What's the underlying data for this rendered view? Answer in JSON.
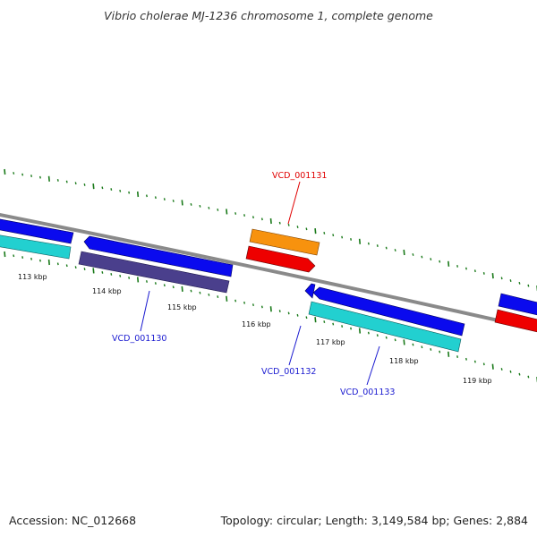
{
  "title": "Vibrio cholerae MJ-1236 chromosome 1, complete genome",
  "footer": {
    "accession": "Accession: NC_012668",
    "topology": "Topology: circular; Length: 3,149,584 bp; Genes: 2,884"
  },
  "tick_labels": [
    "113 kbp",
    "114 kbp",
    "115 kbp",
    "116 kbp",
    "117 kbp",
    "118 kbp",
    "119 kbp"
  ],
  "gene_labels": [
    {
      "text": "VCD_001131",
      "color": "#e00000"
    },
    {
      "text": "VCD_001130",
      "color": "#1a1ad0"
    },
    {
      "text": "VCD_001132",
      "color": "#1a1ad0"
    },
    {
      "text": "VCD_001133",
      "color": "#1a1ad0"
    }
  ],
  "colors": {
    "backbone": "#8a8a8a",
    "cds": "#0a0aee",
    "gene_cyan": "#22d0d0",
    "gene_slate": "#4a3f8c",
    "gene_orange": "#f7920e",
    "gene_red": "#ee0000",
    "tick": "#1a7a1a"
  }
}
